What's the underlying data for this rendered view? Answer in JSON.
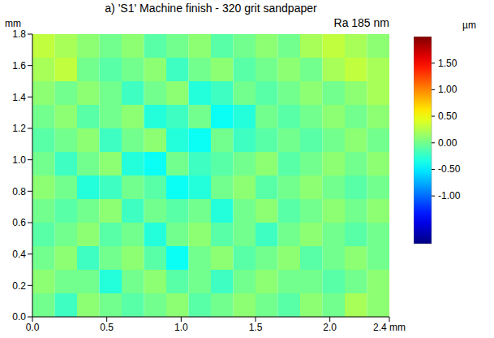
{
  "chart_data": {
    "type": "heatmap",
    "title": "a) 'S1' Machine finish - 320 grit sandpaper",
    "subtitle": "Ra 185 nm",
    "y_label": "mm",
    "xlim": [
      0,
      2.4
    ],
    "ylim": [
      0,
      1.8
    ],
    "xticks": [
      {
        "value": 0,
        "label": "0.0"
      },
      {
        "value": 0.5,
        "label": "0.5"
      },
      {
        "value": 1,
        "label": "1.0"
      },
      {
        "value": 1.5,
        "label": "1.5"
      },
      {
        "value": 2,
        "label": "2.0"
      },
      {
        "value": 2.4,
        "label": "2.4 mm"
      }
    ],
    "yticks": [
      {
        "value": 0,
        "label": "0.0"
      },
      {
        "value": 0.2,
        "label": "0.2"
      },
      {
        "value": 0.4,
        "label": "0.4"
      },
      {
        "value": 0.6,
        "label": "0.6"
      },
      {
        "value": 0.8,
        "label": "0.8"
      },
      {
        "value": 1,
        "label": "1.0"
      },
      {
        "value": 1.2,
        "label": "1.2"
      },
      {
        "value": 1.4,
        "label": "1.4"
      },
      {
        "value": 1.6,
        "label": "1.6"
      },
      {
        "value": 1.8,
        "label": "1.8"
      }
    ],
    "x_edges": [
      0,
      0.15,
      0.3,
      0.45,
      0.6,
      0.75,
      0.9,
      1.05,
      1.2,
      1.35,
      1.5,
      1.65,
      1.8,
      1.95,
      2.1,
      2.25,
      2.4
    ],
    "y_edges_top_down": [
      1.8,
      1.65,
      1.5,
      1.35,
      1.2,
      1.05,
      0.9,
      0.75,
      0.6,
      0.45,
      0.3,
      0.15,
      0
    ],
    "cells": [
      [
        0.3,
        0.2,
        0.1,
        0.0,
        0.1,
        -0.1,
        0.0,
        0.1,
        -0.1,
        0.0,
        0.1,
        0.0,
        0.2,
        0.3,
        0.2,
        0.1
      ],
      [
        0.2,
        0.3,
        0.0,
        -0.1,
        0.0,
        0.1,
        -0.2,
        0.0,
        0.1,
        -0.1,
        0.0,
        0.1,
        0.0,
        0.2,
        0.3,
        0.2
      ],
      [
        0.1,
        0.0,
        0.1,
        0.0,
        -0.2,
        0.0,
        0.1,
        -0.3,
        -0.2,
        0.0,
        -0.1,
        0.0,
        0.1,
        0.0,
        0.1,
        0.2
      ],
      [
        0.0,
        0.1,
        -0.1,
        0.0,
        0.1,
        -0.3,
        -0.2,
        0.0,
        -0.4,
        -0.3,
        0.0,
        -0.1,
        0.0,
        0.1,
        0.0,
        0.1
      ],
      [
        -0.1,
        0.0,
        0.1,
        -0.2,
        0.0,
        0.1,
        -0.3,
        -0.4,
        0.0,
        -0.2,
        -0.1,
        0.0,
        -0.1,
        0.0,
        0.1,
        0.0
      ],
      [
        0.0,
        -0.2,
        0.0,
        0.1,
        -0.3,
        -0.4,
        0.0,
        -0.2,
        -0.1,
        0.0,
        0.1,
        -0.1,
        0.0,
        0.1,
        0.0,
        0.1
      ],
      [
        0.1,
        0.0,
        -0.3,
        -0.2,
        0.0,
        -0.1,
        -0.4,
        -0.3,
        0.0,
        0.1,
        -0.1,
        0.0,
        0.1,
        0.0,
        -0.1,
        0.0
      ],
      [
        0.0,
        -0.1,
        0.0,
        0.1,
        -0.2,
        0.0,
        -0.1,
        0.0,
        -0.3,
        0.0,
        0.1,
        -0.1,
        0.0,
        0.1,
        0.0,
        0.1
      ],
      [
        -0.1,
        0.0,
        0.1,
        -0.1,
        0.0,
        -0.3,
        0.0,
        0.1,
        -0.1,
        0.0,
        -0.2,
        0.0,
        0.1,
        0.0,
        -0.1,
        0.0
      ],
      [
        0.0,
        0.1,
        -0.2,
        0.0,
        0.1,
        -0.1,
        -0.4,
        0.0,
        0.1,
        -0.1,
        0.0,
        0.1,
        -0.1,
        0.0,
        0.1,
        0.0
      ],
      [
        0.1,
        0.0,
        0.0,
        -0.3,
        0.0,
        0.1,
        -0.1,
        0.0,
        -0.2,
        0.0,
        0.1,
        0.0,
        0.0,
        -0.1,
        0.0,
        0.1
      ],
      [
        0.0,
        -0.2,
        0.1,
        0.0,
        -0.1,
        0.0,
        0.1,
        -0.1,
        0.0,
        0.1,
        0.0,
        -0.1,
        0.1,
        0.0,
        0.2,
        0.1
      ]
    ],
    "colorbar": {
      "label": "µm",
      "range": [
        -1.9,
        2.0
      ],
      "ticks": [
        {
          "value": 1.5,
          "label": "1.50"
        },
        {
          "value": 1.0,
          "label": "1.00"
        },
        {
          "value": 0.5,
          "label": "0.50"
        },
        {
          "value": 0.0,
          "label": "0.00"
        },
        {
          "value": -0.5,
          "label": "-0.50"
        },
        {
          "value": -1.0,
          "label": "-1.00"
        }
      ]
    }
  }
}
